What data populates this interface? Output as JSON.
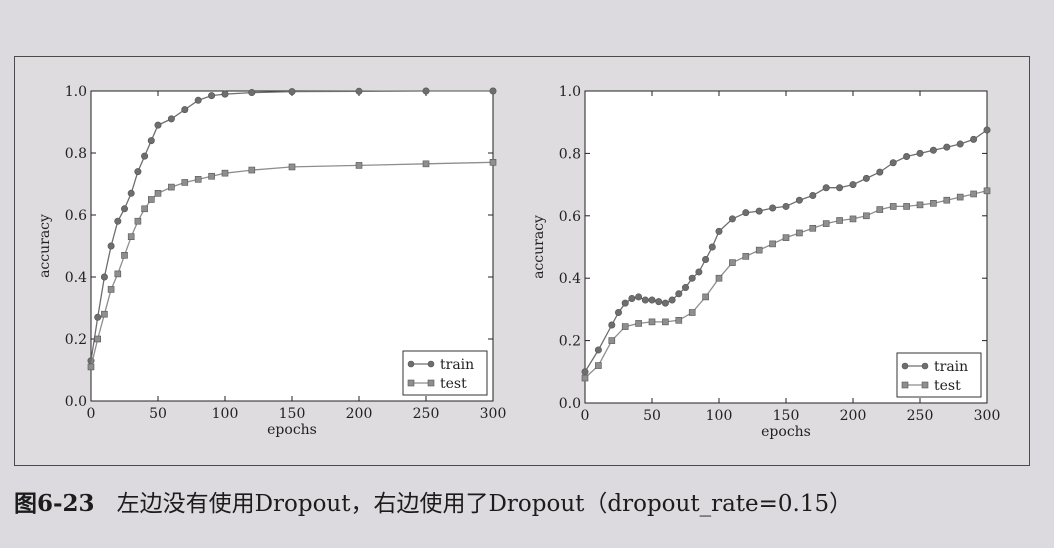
{
  "caption": {
    "figure_number": "图6-23",
    "text": "左边没有使用Dropout，右边使用了Dropout（dropout_rate=0.15）"
  },
  "colors": {
    "train": "#6e6e6e",
    "test": "#8e8e8e",
    "page": "#dcdade",
    "plot_bg": "#ffffff"
  },
  "chart_data": [
    {
      "type": "line",
      "xlabel": "epochs",
      "ylabel": "accuracy",
      "xlim": [
        0,
        300
      ],
      "ylim": [
        0.0,
        1.0
      ],
      "xticks": [
        0,
        50,
        100,
        150,
        200,
        250,
        300
      ],
      "yticks": [
        0.0,
        0.2,
        0.4,
        0.6,
        0.8,
        1.0
      ],
      "legend": "bottom-right",
      "series": [
        {
          "name": "train",
          "marker": "circle",
          "x": [
            0,
            5,
            10,
            15,
            20,
            25,
            30,
            35,
            40,
            45,
            50,
            60,
            70,
            80,
            90,
            100,
            120,
            150,
            200,
            250,
            300
          ],
          "y": [
            0.13,
            0.27,
            0.4,
            0.5,
            0.58,
            0.62,
            0.67,
            0.74,
            0.79,
            0.84,
            0.89,
            0.91,
            0.94,
            0.97,
            0.985,
            0.99,
            0.995,
            0.998,
            0.999,
            1.0,
            1.0
          ]
        },
        {
          "name": "test",
          "marker": "square",
          "x": [
            0,
            5,
            10,
            15,
            20,
            25,
            30,
            35,
            40,
            45,
            50,
            60,
            70,
            80,
            90,
            100,
            120,
            150,
            200,
            250,
            300
          ],
          "y": [
            0.11,
            0.2,
            0.28,
            0.36,
            0.41,
            0.47,
            0.53,
            0.58,
            0.62,
            0.65,
            0.67,
            0.69,
            0.705,
            0.715,
            0.725,
            0.735,
            0.745,
            0.755,
            0.76,
            0.765,
            0.77
          ]
        }
      ]
    },
    {
      "type": "line",
      "xlabel": "epochs",
      "ylabel": "accuracy",
      "xlim": [
        0,
        300
      ],
      "ylim": [
        0.0,
        1.0
      ],
      "xticks": [
        0,
        50,
        100,
        150,
        200,
        250,
        300
      ],
      "yticks": [
        0.0,
        0.2,
        0.4,
        0.6,
        0.8,
        1.0
      ],
      "legend": "bottom-right",
      "series": [
        {
          "name": "train",
          "marker": "circle",
          "x": [
            0,
            10,
            20,
            25,
            30,
            35,
            40,
            45,
            50,
            55,
            60,
            65,
            70,
            75,
            80,
            85,
            90,
            95,
            100,
            110,
            120,
            130,
            140,
            150,
            160,
            170,
            180,
            190,
            200,
            210,
            220,
            230,
            240,
            250,
            260,
            270,
            280,
            290,
            300
          ],
          "y": [
            0.1,
            0.17,
            0.25,
            0.29,
            0.32,
            0.335,
            0.34,
            0.33,
            0.33,
            0.325,
            0.32,
            0.33,
            0.35,
            0.37,
            0.4,
            0.42,
            0.46,
            0.5,
            0.55,
            0.59,
            0.61,
            0.615,
            0.625,
            0.63,
            0.65,
            0.665,
            0.69,
            0.69,
            0.7,
            0.72,
            0.74,
            0.77,
            0.79,
            0.8,
            0.81,
            0.82,
            0.83,
            0.845,
            0.875
          ]
        },
        {
          "name": "test",
          "marker": "square",
          "x": [
            0,
            10,
            20,
            30,
            40,
            50,
            60,
            70,
            80,
            90,
            100,
            110,
            120,
            130,
            140,
            150,
            160,
            170,
            180,
            190,
            200,
            210,
            220,
            230,
            240,
            250,
            260,
            270,
            280,
            290,
            300
          ],
          "y": [
            0.08,
            0.12,
            0.2,
            0.245,
            0.255,
            0.26,
            0.26,
            0.265,
            0.29,
            0.34,
            0.4,
            0.45,
            0.47,
            0.49,
            0.51,
            0.53,
            0.545,
            0.56,
            0.575,
            0.585,
            0.59,
            0.6,
            0.62,
            0.63,
            0.63,
            0.635,
            0.64,
            0.65,
            0.66,
            0.67,
            0.68
          ]
        }
      ]
    }
  ]
}
